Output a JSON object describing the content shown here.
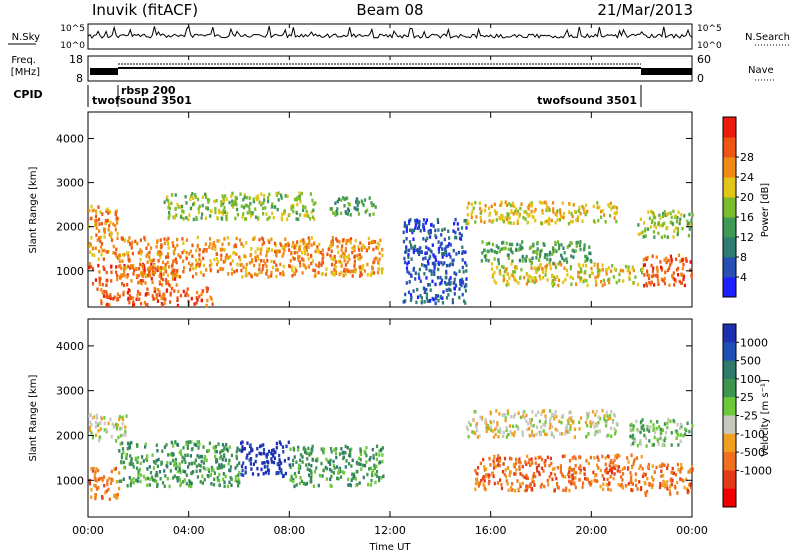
{
  "header": {
    "station": "Inuvik (fitACF)",
    "beam": "Beam 08",
    "date": "21/Mar/2013"
  },
  "top_panels": {
    "nsky_label": "N.Sky",
    "nsky_ticks": [
      "10^5",
      "10^0"
    ],
    "nsearch_label": "N.Search",
    "nsearch_ticks": [
      "10^5",
      "10^0"
    ],
    "freq_label": [
      "Freq.",
      "[MHz]"
    ],
    "freq_ticks": [
      "18",
      "8"
    ],
    "nave_label": "Nave",
    "nave_ticks": [
      "60",
      "0"
    ],
    "cpid_label": "CPID",
    "cpid_modes": [
      {
        "name": "twofsound 3501",
        "start_h": 0.0,
        "end_h": 1.0
      },
      {
        "name": "rbsp 200",
        "start_h": 1.0,
        "end_h": 21.9
      },
      {
        "name": "twofsound 3501",
        "start_h": 21.9,
        "end_h": 24.0
      }
    ]
  },
  "chart_data": [
    {
      "type": "heatmap",
      "panel": "power",
      "xlabel": "",
      "ylabel": "Slant Range [km]",
      "xlim_hours": [
        0,
        24
      ],
      "ylim": [
        180,
        4600
      ],
      "y_ticks": [
        1000,
        2000,
        3000,
        4000
      ],
      "colorbar_label": "Power [dB]",
      "colorbar_ticks": [
        "4",
        "8",
        "12",
        "16",
        "20",
        "24",
        "28"
      ],
      "colorbar_levels": [
        0,
        4,
        8,
        12,
        16,
        20,
        24,
        28,
        32
      ],
      "colorbar_colors": [
        "#1f1fff",
        "#2850b4",
        "#2e7d70",
        "#3f9a55",
        "#7cbb2c",
        "#e3c51a",
        "#f08a14",
        "#ef5514",
        "#e91c0e"
      ],
      "regions": [
        {
          "start_h": 0.0,
          "end_h": 1.2,
          "r_lo": 1300,
          "r_hi": 2500,
          "level": 6
        },
        {
          "start_h": 0.0,
          "end_h": 3.5,
          "r_lo": 700,
          "r_hi": 1200,
          "level": 7
        },
        {
          "start_h": 1.2,
          "end_h": 11.7,
          "r_lo": 900,
          "r_hi": 1800,
          "level": 6
        },
        {
          "start_h": 0.3,
          "end_h": 5.0,
          "r_lo": 250,
          "r_hi": 650,
          "level": 7
        },
        {
          "start_h": 3.0,
          "end_h": 9.0,
          "r_lo": 2200,
          "r_hi": 2800,
          "level": 4
        },
        {
          "start_h": 9.5,
          "end_h": 11.5,
          "r_lo": 2300,
          "r_hi": 2700,
          "level": 3
        },
        {
          "start_h": 12.5,
          "end_h": 15.0,
          "r_lo": 300,
          "r_hi": 2200,
          "level": 1
        },
        {
          "start_h": 15.0,
          "end_h": 21.0,
          "r_lo": 2100,
          "r_hi": 2600,
          "level": 5
        },
        {
          "start_h": 15.5,
          "end_h": 20.0,
          "r_lo": 1200,
          "r_hi": 1700,
          "level": 3
        },
        {
          "start_h": 16.0,
          "end_h": 22.0,
          "r_lo": 700,
          "r_hi": 1200,
          "level": 5
        },
        {
          "start_h": 22.0,
          "end_h": 24.0,
          "r_lo": 700,
          "r_hi": 1400,
          "level": 7
        },
        {
          "start_h": 21.8,
          "end_h": 24.0,
          "r_lo": 1800,
          "r_hi": 2400,
          "level": 4
        }
      ]
    },
    {
      "type": "heatmap",
      "panel": "velocity",
      "xlabel": "Time UT",
      "ylabel": "Slant Range [km]",
      "xlim_hours": [
        0,
        24
      ],
      "ylim": [
        180,
        4600
      ],
      "y_ticks": [
        1000,
        2000,
        3000,
        4000
      ],
      "x_ticks": [
        "00:00",
        "04:00",
        "08:00",
        "12:00",
        "16:00",
        "20:00",
        "00:00"
      ],
      "colorbar_label": "Velocity [m s⁻¹]",
      "colorbar_ticks": [
        "1000",
        "500",
        "100",
        "25",
        "-25",
        "-100",
        "-500",
        "-1000"
      ],
      "colorbar_colors": [
        "#1e2fb0",
        "#1f4fb5",
        "#2f7a68",
        "#3e9550",
        "#6ec93a",
        "#c8c8c0",
        "#f0a020",
        "#f07020",
        "#e53a1a",
        "#ef0000"
      ],
      "regions": [
        {
          "start_h": 0.0,
          "end_h": 1.2,
          "r_lo": 600,
          "r_hi": 1300,
          "level": 7
        },
        {
          "start_h": 0.0,
          "end_h": 1.5,
          "r_lo": 1900,
          "r_hi": 2500,
          "level": 5
        },
        {
          "start_h": 1.2,
          "end_h": 6.0,
          "r_lo": 900,
          "r_hi": 1900,
          "level": 3
        },
        {
          "start_h": 6.0,
          "end_h": 8.0,
          "r_lo": 1100,
          "r_hi": 1900,
          "level": 0
        },
        {
          "start_h": 8.0,
          "end_h": 11.7,
          "r_lo": 900,
          "r_hi": 1800,
          "level": 3
        },
        {
          "start_h": 15.0,
          "end_h": 21.0,
          "r_lo": 2000,
          "r_hi": 2600,
          "level": 5
        },
        {
          "start_h": 15.3,
          "end_h": 22.0,
          "r_lo": 800,
          "r_hi": 1600,
          "level": 7
        },
        {
          "start_h": 22.0,
          "end_h": 24.0,
          "r_lo": 700,
          "r_hi": 1400,
          "level": 7
        },
        {
          "start_h": 21.5,
          "end_h": 24.0,
          "r_lo": 1800,
          "r_hi": 2400,
          "level": 4
        }
      ]
    }
  ]
}
